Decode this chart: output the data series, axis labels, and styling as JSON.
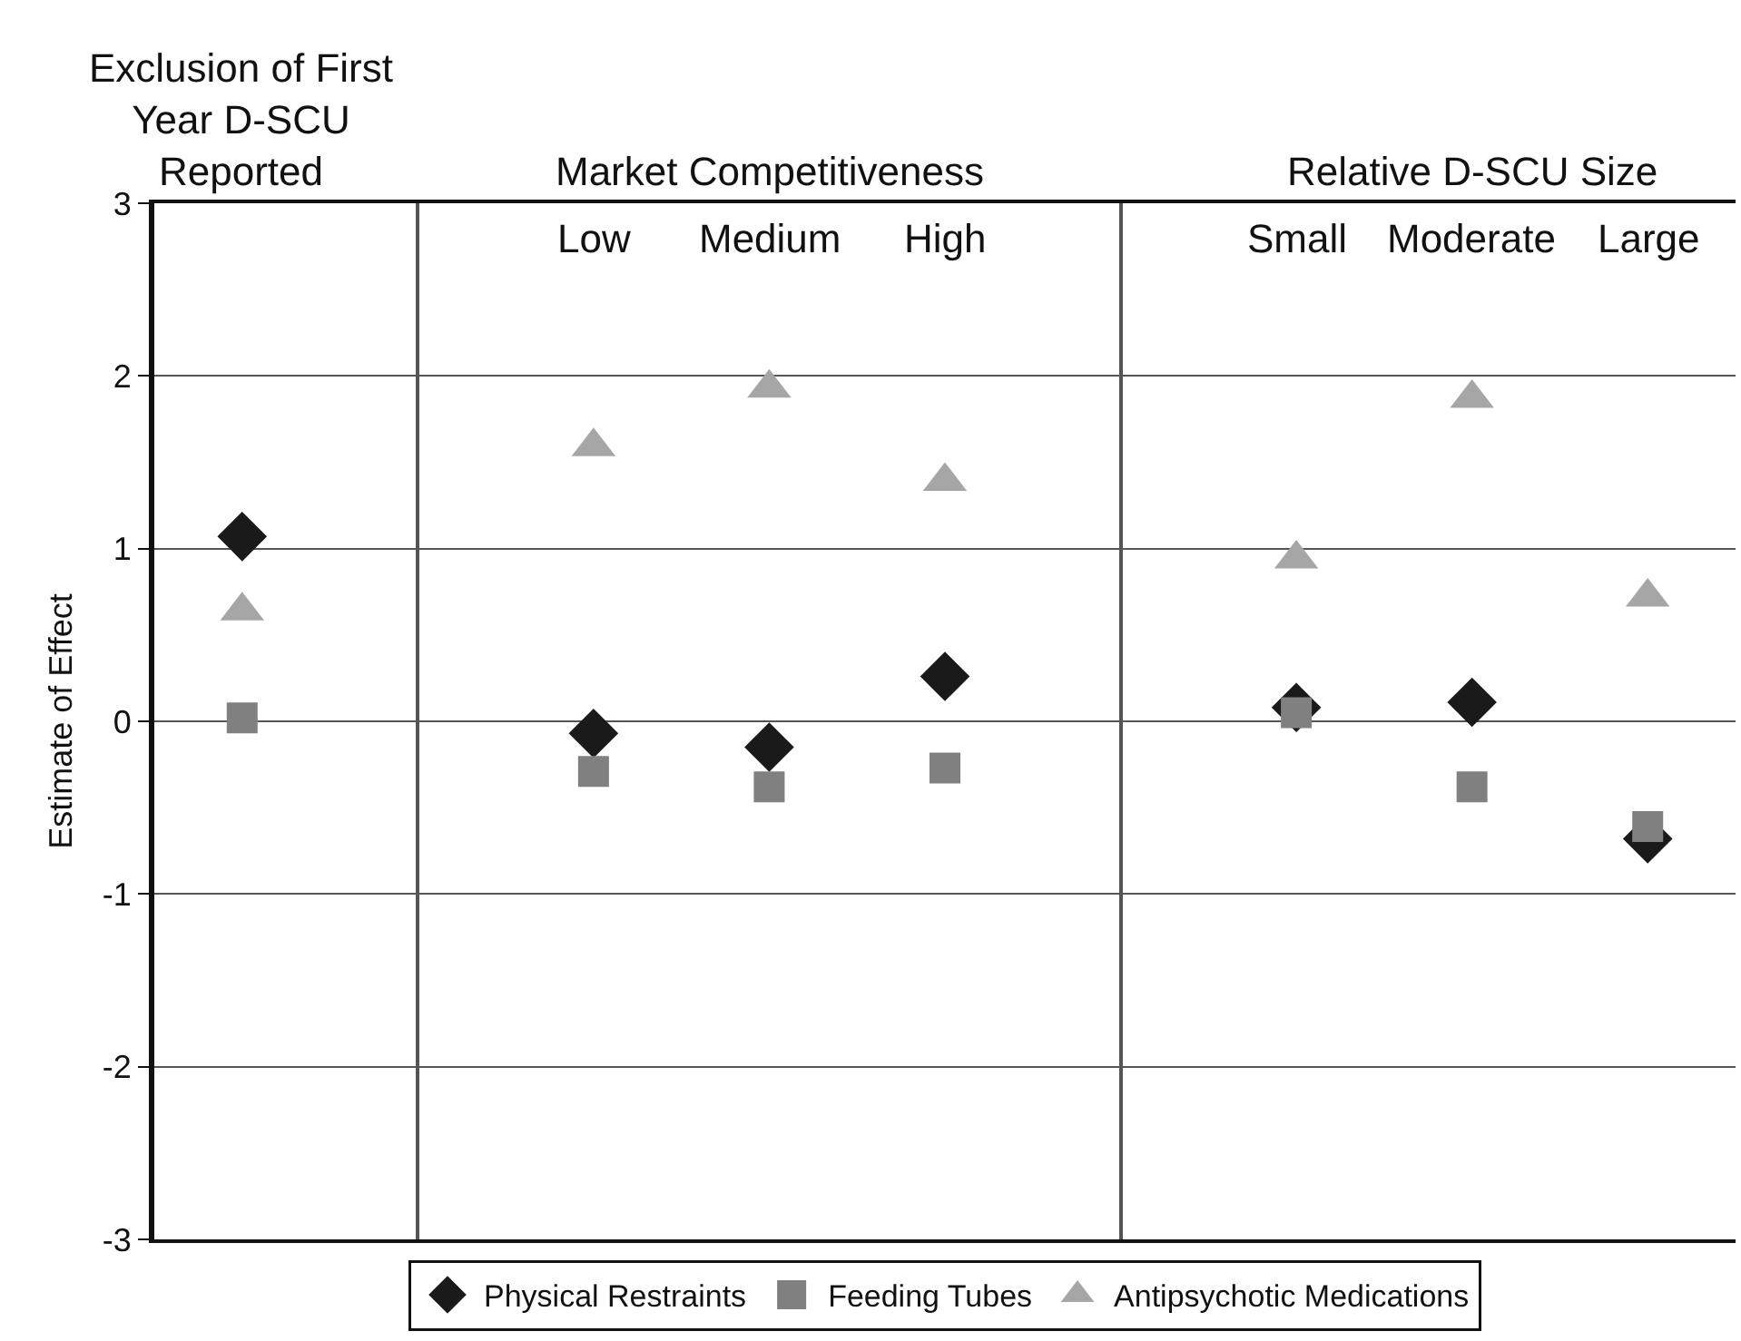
{
  "chart_data": {
    "type": "scatter",
    "categories": [
      null,
      null,
      "Low",
      "Medium",
      "High",
      null,
      "Small",
      "Moderate",
      "Large"
    ],
    "ylabel": "Estimate of Effect",
    "series": [
      {
        "name": "Physical Restraints",
        "color": "#1a1a1a",
        "marker": "diamond",
        "values": [
          1.07,
          null,
          -0.07,
          -0.15,
          0.26,
          null,
          0.08,
          0.11,
          -0.68
        ]
      },
      {
        "name": "Feeding Tubes",
        "color": "#808080",
        "marker": "square",
        "values": [
          0.02,
          null,
          -0.29,
          -0.38,
          -0.27,
          null,
          0.05,
          -0.38,
          -0.61
        ]
      },
      {
        "name": "Antipsychotic Medications",
        "color": "#a6a6a6",
        "marker": "triangle",
        "values": [
          0.64,
          null,
          1.59,
          1.93,
          1.39,
          null,
          0.94,
          1.87,
          0.72
        ]
      }
    ],
    "ylim": [
      -3,
      3
    ],
    "yticks": [
      -3,
      -2,
      -1,
      0,
      1,
      2,
      3
    ],
    "grid": true,
    "legend": "bottom",
    "annotations": [
      "Exclusion of First\nYear D-SCU\nReported",
      "Market Competitiveness",
      "Relative D-SCU Size"
    ]
  }
}
